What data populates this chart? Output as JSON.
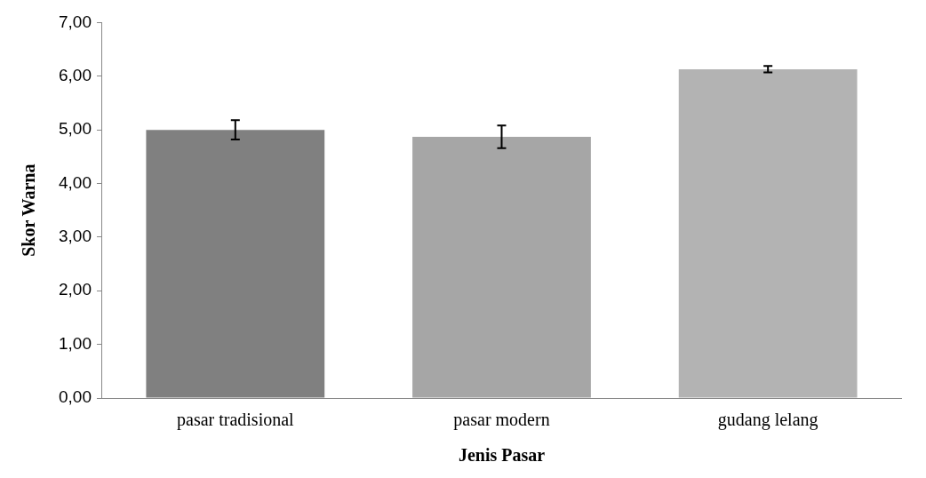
{
  "chart_data": {
    "type": "bar",
    "xlabel": "Jenis Pasar",
    "ylabel": "Skor Warna",
    "categories": [
      "pasar tradisional",
      "pasar modern",
      "gudang lelang"
    ],
    "values": [
      5.0,
      4.87,
      6.13
    ],
    "errors": [
      0.18,
      0.21,
      0.06
    ],
    "colors": [
      "#808080",
      "#a6a6a6",
      "#b3b3b3"
    ],
    "ylim": [
      0,
      7
    ],
    "yticks": [
      {
        "value": 0,
        "label": "0,00"
      },
      {
        "value": 1,
        "label": "1,00"
      },
      {
        "value": 2,
        "label": "2,00"
      },
      {
        "value": 3,
        "label": "3,00"
      },
      {
        "value": 4,
        "label": "4,00"
      },
      {
        "value": 5,
        "label": "5,00"
      },
      {
        "value": 6,
        "label": "6,00"
      },
      {
        "value": 7,
        "label": "7,00"
      }
    ],
    "grid": false,
    "legend": false
  }
}
